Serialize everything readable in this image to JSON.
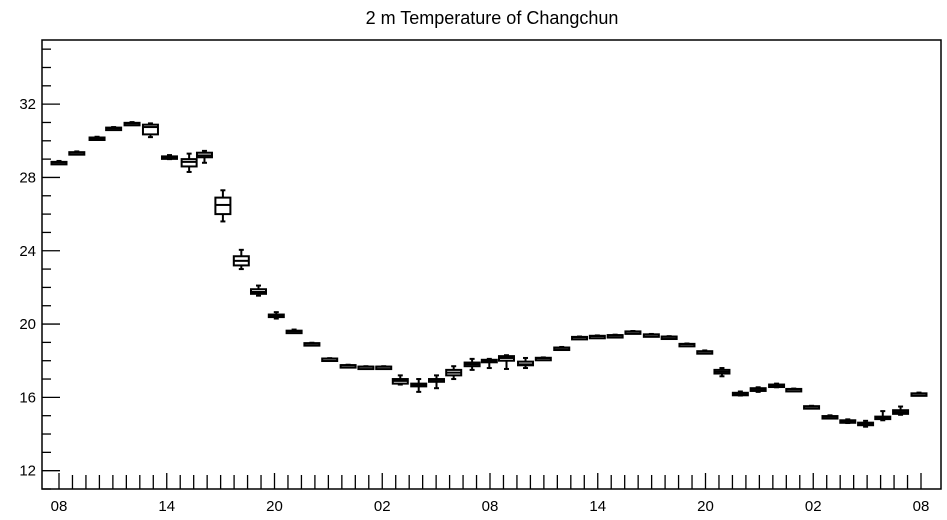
{
  "chart_data": {
    "type": "boxplot",
    "title": "2 m Temperature of Changchun",
    "xlabel": "",
    "ylabel": "",
    "ylim": [
      11,
      35.5
    ],
    "xlim": [
      0,
      68.5
    ],
    "y_ticks": [
      12,
      16,
      20,
      24,
      28,
      32
    ],
    "y_tick_labels": [
      "12",
      "16",
      "20",
      "24",
      "28",
      "32"
    ],
    "x_tick_labels": [
      {
        "x": 0,
        "label": "08"
      },
      {
        "x": 8,
        "label": "14"
      },
      {
        "x": 16,
        "label": "20"
      },
      {
        "x": 24,
        "label": "02"
      },
      {
        "x": 32,
        "label": "08"
      },
      {
        "x": 40,
        "label": "14"
      },
      {
        "x": 48,
        "label": "20"
      },
      {
        "x": 56,
        "label": "02"
      },
      {
        "x": 64,
        "label": "08"
      }
    ],
    "x_minor_step": 1,
    "grid": false,
    "legend": "none",
    "boxes": [
      {
        "x": 0,
        "min": 28.75,
        "q1": 28.8,
        "median": 28.82,
        "q3": 28.85,
        "max": 28.9
      },
      {
        "x": 1,
        "min": 29.3,
        "q1": 29.33,
        "median": 29.35,
        "q3": 29.38,
        "max": 29.42
      },
      {
        "x": 2,
        "min": 30.08,
        "q1": 30.12,
        "median": 30.15,
        "q3": 30.18,
        "max": 30.22
      },
      {
        "x": 3,
        "min": 30.62,
        "q1": 30.65,
        "median": 30.68,
        "q3": 30.72,
        "max": 30.75
      },
      {
        "x": 4,
        "min": 30.88,
        "q1": 30.92,
        "median": 30.95,
        "q3": 30.98,
        "max": 31.02
      },
      {
        "x": 5,
        "min": 30.2,
        "q1": 30.35,
        "median": 30.75,
        "q3": 30.88,
        "max": 30.95
      },
      {
        "x": 6,
        "min": 29.0,
        "q1": 29.05,
        "median": 29.1,
        "q3": 29.15,
        "max": 29.22
      },
      {
        "x": 7,
        "min": 28.3,
        "q1": 28.6,
        "median": 28.85,
        "q3": 29.0,
        "max": 29.3
      },
      {
        "x": 8,
        "min": 28.8,
        "q1": 29.1,
        "median": 29.2,
        "q3": 29.35,
        "max": 29.45
      },
      {
        "x": 9,
        "min": 25.6,
        "q1": 26.0,
        "median": 26.5,
        "q3": 26.9,
        "max": 27.3
      },
      {
        "x": 10,
        "min": 23.0,
        "q1": 23.2,
        "median": 23.45,
        "q3": 23.7,
        "max": 24.05
      },
      {
        "x": 11,
        "min": 21.55,
        "q1": 21.65,
        "median": 21.75,
        "q3": 21.9,
        "max": 22.1
      },
      {
        "x": 12,
        "min": 20.3,
        "q1": 20.38,
        "median": 20.45,
        "q3": 20.52,
        "max": 20.65
      },
      {
        "x": 13,
        "min": 19.52,
        "q1": 19.56,
        "median": 19.6,
        "q3": 19.64,
        "max": 19.7
      },
      {
        "x": 14,
        "min": 18.9,
        "q1": 18.92,
        "median": 18.94,
        "q3": 18.96,
        "max": 18.98
      },
      {
        "x": 15,
        "min": 18.08,
        "q1": 18.1,
        "median": 18.11,
        "q3": 18.12,
        "max": 18.14
      },
      {
        "x": 16,
        "min": 17.72,
        "q1": 17.74,
        "median": 17.75,
        "q3": 17.76,
        "max": 17.78
      },
      {
        "x": 17,
        "min": 17.64,
        "q1": 17.66,
        "median": 17.67,
        "q3": 17.68,
        "max": 17.7
      },
      {
        "x": 18,
        "min": 17.64,
        "q1": 17.66,
        "median": 17.67,
        "q3": 17.68,
        "max": 17.7
      },
      {
        "x": 19,
        "min": 16.7,
        "q1": 16.75,
        "median": 16.9,
        "q3": 17.0,
        "max": 17.2
      },
      {
        "x": 20,
        "min": 16.3,
        "q1": 16.6,
        "median": 16.7,
        "q3": 16.75,
        "max": 17.0
      },
      {
        "x": 21,
        "min": 16.5,
        "q1": 16.85,
        "median": 16.95,
        "q3": 17.0,
        "max": 17.2
      },
      {
        "x": 22,
        "min": 17.0,
        "q1": 17.2,
        "median": 17.35,
        "q3": 17.5,
        "max": 17.7
      },
      {
        "x": 23,
        "min": 17.5,
        "q1": 17.7,
        "median": 17.8,
        "q3": 17.9,
        "max": 18.1
      },
      {
        "x": 24,
        "min": 17.6,
        "q1": 17.95,
        "median": 18.0,
        "q3": 18.05,
        "max": 18.1
      },
      {
        "x": 25,
        "min": 17.55,
        "q1": 18.0,
        "median": 18.15,
        "q3": 18.25,
        "max": 18.3
      },
      {
        "x": 26,
        "min": 17.6,
        "q1": 17.75,
        "median": 17.8,
        "q3": 17.95,
        "max": 18.15
      },
      {
        "x": 27,
        "min": 18.1,
        "q1": 18.12,
        "median": 18.14,
        "q3": 18.16,
        "max": 18.18
      },
      {
        "x": 28,
        "min": 18.65,
        "q1": 18.68,
        "median": 18.7,
        "q3": 18.72,
        "max": 18.75
      },
      {
        "x": 29,
        "min": 19.25,
        "q1": 19.27,
        "median": 19.28,
        "q3": 19.3,
        "max": 19.32
      },
      {
        "x": 30,
        "min": 19.3,
        "q1": 19.32,
        "median": 19.34,
        "q3": 19.36,
        "max": 19.38
      },
      {
        "x": 31,
        "min": 19.34,
        "q1": 19.36,
        "median": 19.38,
        "q3": 19.4,
        "max": 19.42
      },
      {
        "x": 32,
        "min": 19.55,
        "q1": 19.57,
        "median": 19.58,
        "q3": 19.6,
        "max": 19.62
      },
      {
        "x": 33,
        "min": 19.38,
        "q1": 19.4,
        "median": 19.42,
        "q3": 19.44,
        "max": 19.46
      },
      {
        "x": 34,
        "min": 19.26,
        "q1": 19.28,
        "median": 19.3,
        "q3": 19.32,
        "max": 19.34
      },
      {
        "x": 35,
        "min": 18.86,
        "q1": 18.88,
        "median": 18.9,
        "q3": 18.92,
        "max": 18.94
      },
      {
        "x": 36,
        "min": 18.46,
        "q1": 18.48,
        "median": 18.5,
        "q3": 18.52,
        "max": 18.56
      },
      {
        "x": 37,
        "min": 17.15,
        "q1": 17.3,
        "median": 17.4,
        "q3": 17.5,
        "max": 17.6
      },
      {
        "x": 38,
        "min": 16.1,
        "q1": 16.15,
        "median": 16.2,
        "q3": 16.25,
        "max": 16.32
      },
      {
        "x": 39,
        "min": 16.3,
        "q1": 16.35,
        "median": 16.4,
        "q3": 16.5,
        "max": 16.55
      },
      {
        "x": 40,
        "min": 16.55,
        "q1": 16.6,
        "median": 16.65,
        "q3": 16.7,
        "max": 16.75
      },
      {
        "x": 41,
        "min": 16.4,
        "q1": 16.42,
        "median": 16.44,
        "q3": 16.46,
        "max": 16.48
      },
      {
        "x": 42,
        "min": 15.46,
        "q1": 15.48,
        "median": 15.5,
        "q3": 15.52,
        "max": 15.54
      },
      {
        "x": 43,
        "min": 14.9,
        "q1": 14.93,
        "median": 14.95,
        "q3": 14.98,
        "max": 15.02
      },
      {
        "x": 44,
        "min": 14.6,
        "q1": 14.65,
        "median": 14.7,
        "q3": 14.75,
        "max": 14.8
      },
      {
        "x": 45,
        "min": 14.4,
        "q1": 14.48,
        "median": 14.55,
        "q3": 14.62,
        "max": 14.72
      },
      {
        "x": 46,
        "min": 14.75,
        "q1": 14.85,
        "median": 14.9,
        "q3": 14.95,
        "max": 15.25
      },
      {
        "x": 47,
        "min": 15.05,
        "q1": 15.1,
        "median": 15.2,
        "q3": 15.3,
        "max": 15.5
      },
      {
        "x": 48,
        "min": 16.15,
        "q1": 16.18,
        "median": 16.2,
        "q3": 16.22,
        "max": 16.26
      }
    ],
    "box_x_positions": [
      0,
      1.45,
      3.1,
      4.45,
      5.95,
      7.45,
      9.0,
      10.6,
      11.85,
      13.35,
      14.85,
      16.25,
      17.7,
      19.15,
      20.6,
      22.05,
      23.55,
      25.0,
      26.45,
      27.8,
      29.3,
      30.75,
      32.15,
      33.65,
      35.05,
      36.45,
      38.0,
      39.45,
      40.95,
      42.4,
      43.85,
      45.3,
      46.75,
      48.25,
      49.7,
      51.15,
      52.6,
      54.0,
      55.5,
      56.95,
      58.45,
      59.85,
      61.3,
      62.8,
      64.25,
      65.7,
      67.1,
      68.55,
      70.05
    ]
  }
}
